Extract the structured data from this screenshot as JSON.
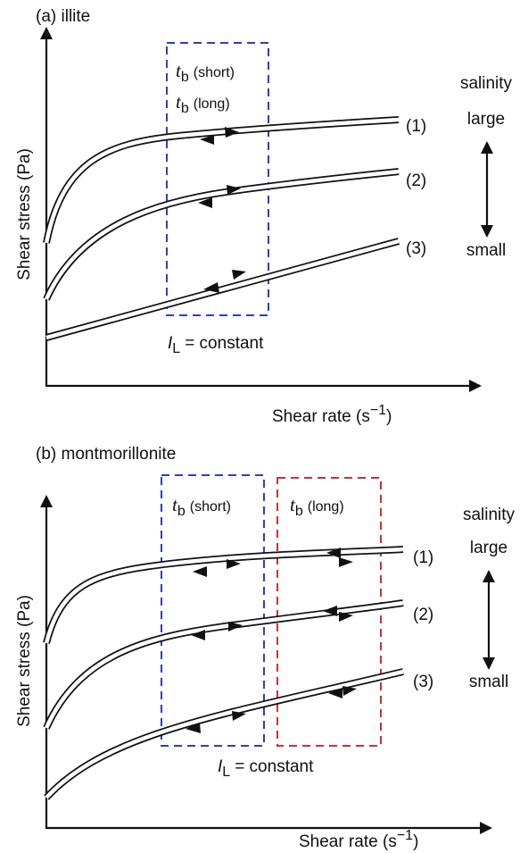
{
  "panels": [
    {
      "label": "(a) illite",
      "y_axis": "Shear stress (Pa)",
      "x_axis": {
        "text": "Shear rate (s",
        "superscript": "−1",
        "close": ")"
      },
      "boxes": [
        {
          "items": [
            {
              "symbol": "t",
              "subscript": "b",
              "text": "(short)"
            },
            {
              "symbol": "t",
              "subscript": "b",
              "text": "(long)"
            }
          ]
        }
      ],
      "curves": [
        "(1)",
        "(2)",
        "(3)"
      ],
      "salinity": {
        "title": "salinity",
        "top": "large",
        "bottom": "small"
      },
      "condition": {
        "symbol": "I",
        "subscript": "L",
        "text": "= constant"
      }
    },
    {
      "label": "(b) montmorillonite",
      "y_axis": "Shear stress (Pa)",
      "x_axis": {
        "text": "Shear rate (s",
        "superscript": "−1",
        "close": ")"
      },
      "boxes": [
        {
          "items": [
            {
              "symbol": "t",
              "subscript": "b",
              "text": "(short)"
            }
          ]
        },
        {
          "items": [
            {
              "symbol": "t",
              "subscript": "b",
              "text": "(long)"
            }
          ]
        }
      ],
      "curves": [
        "(1)",
        "(2)",
        "(3)"
      ],
      "salinity": {
        "title": "salinity",
        "top": "large",
        "bottom": "small"
      },
      "condition": {
        "symbol": "I",
        "subscript": "L",
        "text": "= constant"
      }
    }
  ]
}
